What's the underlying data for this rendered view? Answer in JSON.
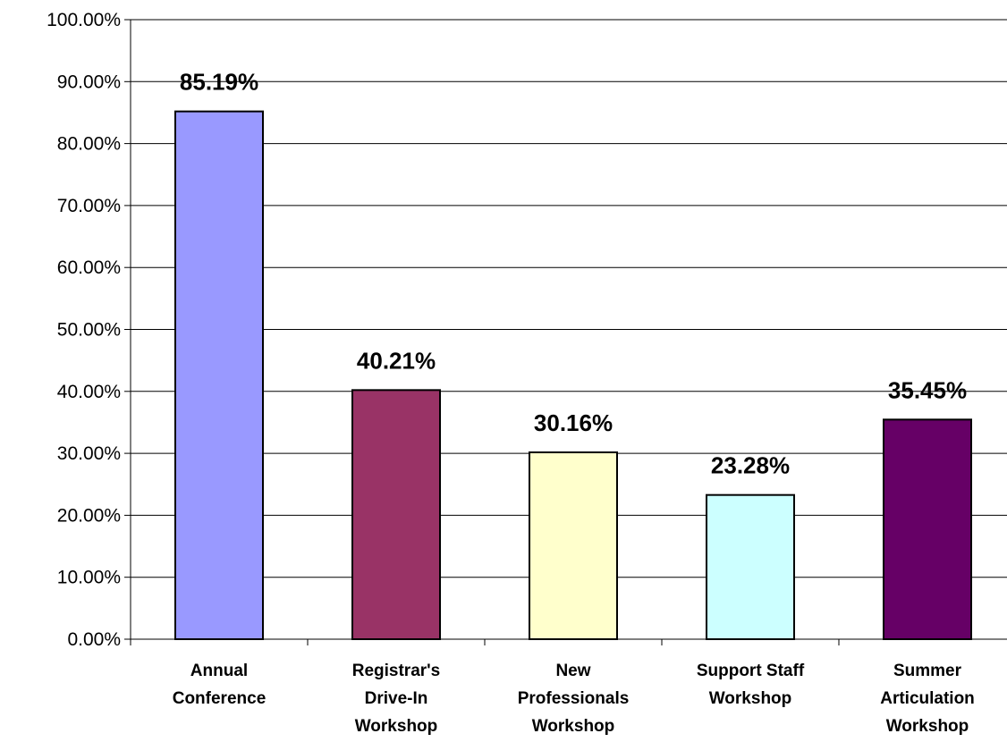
{
  "chart_data": {
    "type": "bar",
    "categories": [
      [
        "Annual",
        "Conference"
      ],
      [
        "Registrar's",
        "Drive-In",
        "Workshop"
      ],
      [
        "New",
        "Professionals",
        "Workshop"
      ],
      [
        "Support Staff",
        "Workshop"
      ],
      [
        "Summer",
        "Articulation",
        "Workshop"
      ]
    ],
    "values": [
      85.19,
      40.21,
      30.16,
      23.28,
      35.45
    ],
    "data_labels": [
      "85.19%",
      "40.21%",
      "30.16%",
      "23.28%",
      "35.45%"
    ],
    "bar_colors": [
      "#9999FF",
      "#993366",
      "#FFFFCC",
      "#CCFFFF",
      "#660066"
    ],
    "ylim": [
      0,
      100
    ],
    "y_ticks": [
      0,
      10,
      20,
      30,
      40,
      50,
      60,
      70,
      80,
      90,
      100
    ],
    "y_tick_labels": [
      "0.00%",
      "10.00%",
      "20.00%",
      "30.00%",
      "40.00%",
      "50.00%",
      "60.00%",
      "70.00%",
      "80.00%",
      "90.00%",
      "100.00%"
    ],
    "grid": true,
    "title": "",
    "xlabel": "",
    "ylabel": ""
  }
}
